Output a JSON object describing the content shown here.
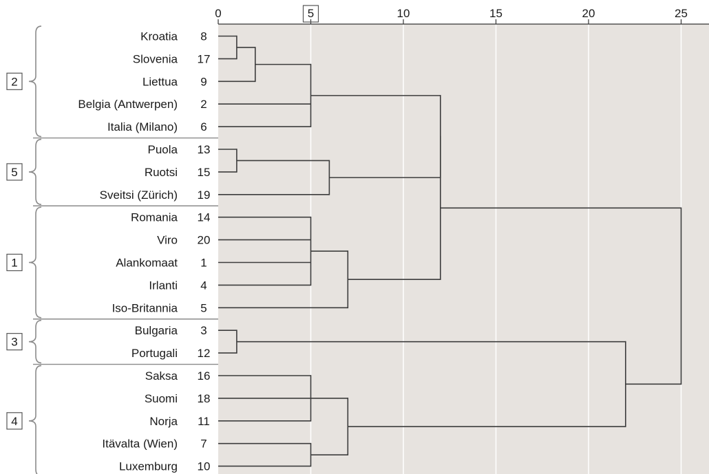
{
  "chart_data": {
    "type": "dendrogram",
    "orientation": "horizontal",
    "xlim": [
      0,
      26
    ],
    "ticks": [
      0,
      5,
      10,
      15,
      20,
      25
    ],
    "highlighted_tick": 5,
    "grid": true,
    "colors": {
      "plot_bg": "#e7e3df",
      "line": "#3c3c3c",
      "grid": "#ffffff",
      "bracket": "#8a8a8a"
    },
    "leaves": [
      {
        "label": "Kroatia",
        "id": "8"
      },
      {
        "label": "Slovenia",
        "id": "17"
      },
      {
        "label": "Liettua",
        "id": "9"
      },
      {
        "label": "Belgia (Antwerpen)",
        "id": "2"
      },
      {
        "label": "Italia (Milano)",
        "id": "6"
      },
      {
        "label": "Puola",
        "id": "13"
      },
      {
        "label": "Ruotsi",
        "id": "15"
      },
      {
        "label": "Sveitsi (Zürich)",
        "id": "19"
      },
      {
        "label": "Romania",
        "id": "14"
      },
      {
        "label": "Viro",
        "id": "20"
      },
      {
        "label": "Alankomaat",
        "id": "1"
      },
      {
        "label": "Irlanti",
        "id": "4"
      },
      {
        "label": "Iso-Britannia",
        "id": "5"
      },
      {
        "label": "Bulgaria",
        "id": "3"
      },
      {
        "label": "Portugali",
        "id": "12"
      },
      {
        "label": "Saksa",
        "id": "16"
      },
      {
        "label": "Suomi",
        "id": "18"
      },
      {
        "label": "Norja",
        "id": "11"
      },
      {
        "label": "Itävalta (Wien)",
        "id": "7"
      },
      {
        "label": "Luxemburg",
        "id": "10"
      }
    ],
    "merges": [
      {
        "name": "m1",
        "children": [
          "L0",
          "L1"
        ],
        "height": 1
      },
      {
        "name": "m2",
        "children": [
          "m1",
          "L2"
        ],
        "height": 2
      },
      {
        "name": "m3",
        "children": [
          "m2",
          "L3",
          "L4"
        ],
        "height": 5
      },
      {
        "name": "m4",
        "children": [
          "L5",
          "L6"
        ],
        "height": 1
      },
      {
        "name": "m5",
        "children": [
          "m4",
          "L7"
        ],
        "height": 6
      },
      {
        "name": "m6",
        "children": [
          "m3",
          "m5"
        ],
        "height": 12
      },
      {
        "name": "m7",
        "children": [
          "L8",
          "L9",
          "L10",
          "L11"
        ],
        "height": 5
      },
      {
        "name": "m8",
        "children": [
          "m7",
          "L12"
        ],
        "height": 7
      },
      {
        "name": "m9",
        "children": [
          "m6",
          "m8"
        ],
        "height": 12
      },
      {
        "name": "m10",
        "children": [
          "L13",
          "L14"
        ],
        "height": 1
      },
      {
        "name": "m11",
        "children": [
          "L15",
          "L16",
          "L17"
        ],
        "height": 5
      },
      {
        "name": "m12",
        "children": [
          "L18",
          "L19"
        ],
        "height": 5
      },
      {
        "name": "m13",
        "children": [
          "m11",
          "m12"
        ],
        "height": 7
      },
      {
        "name": "m14",
        "children": [
          "m10",
          "m13"
        ],
        "height": 22
      },
      {
        "name": "m15",
        "children": [
          "m9",
          "m14"
        ],
        "height": 25
      }
    ],
    "groups": [
      {
        "label": "2",
        "first": 0,
        "last": 4
      },
      {
        "label": "5",
        "first": 5,
        "last": 7
      },
      {
        "label": "1",
        "first": 8,
        "last": 12
      },
      {
        "label": "3",
        "first": 13,
        "last": 14
      },
      {
        "label": "4",
        "first": 15,
        "last": 19
      }
    ]
  }
}
